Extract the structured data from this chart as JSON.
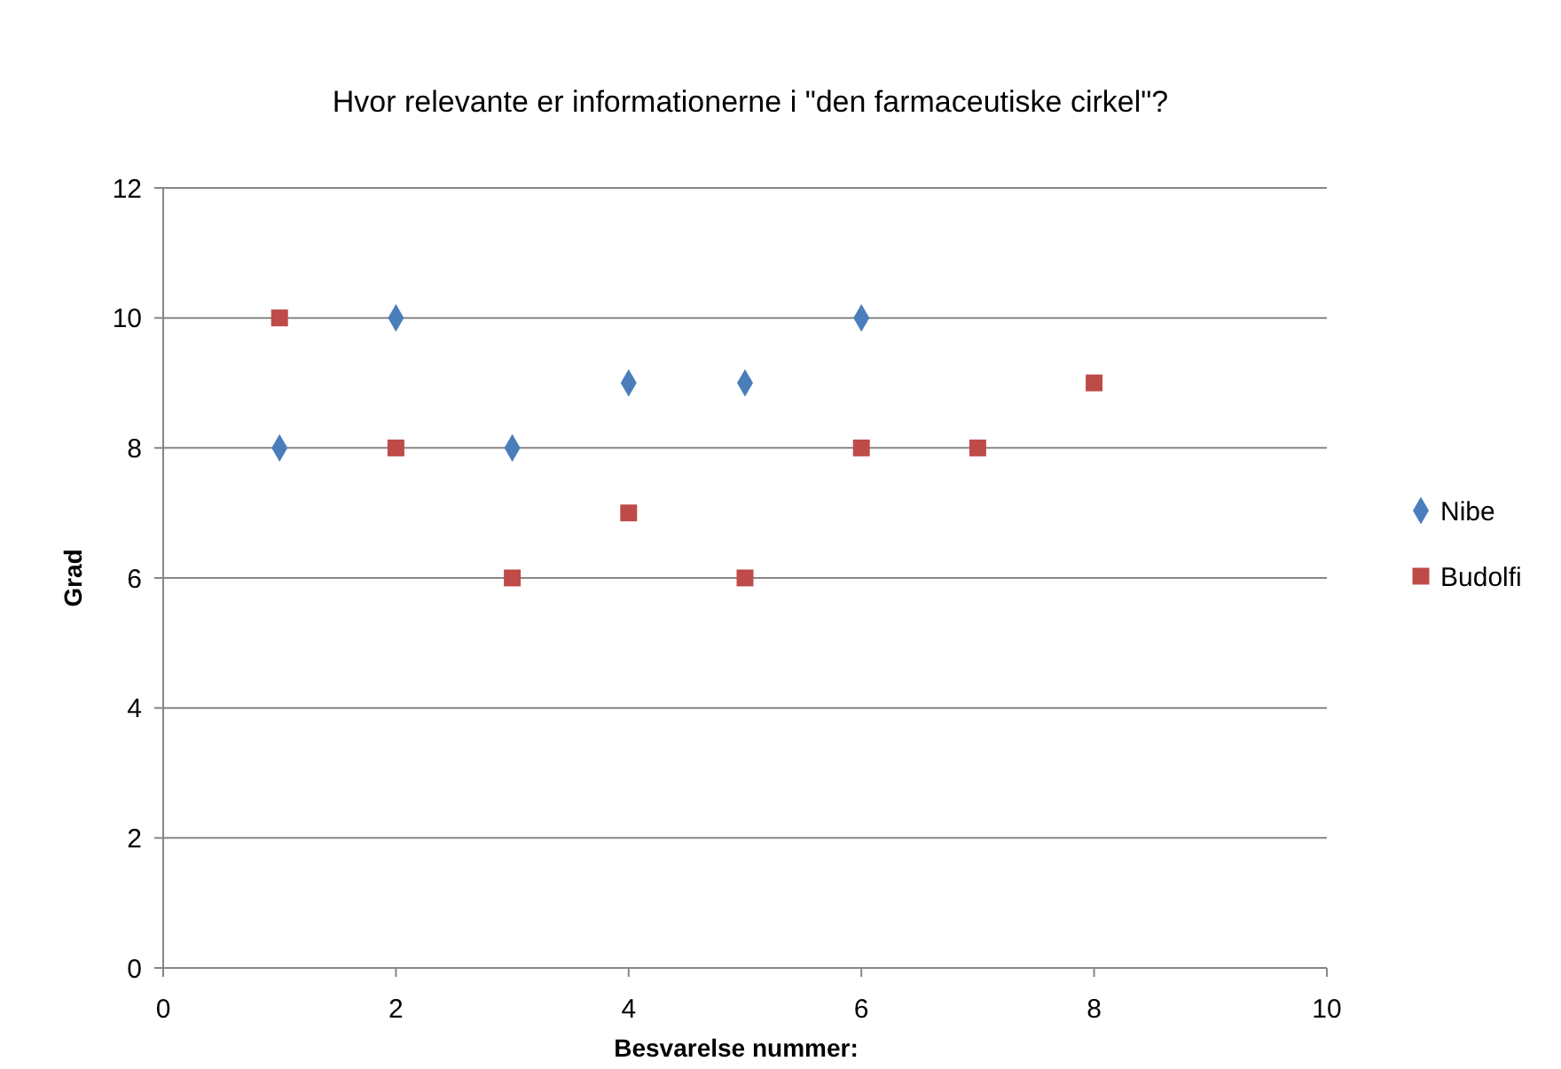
{
  "chart_data": {
    "type": "scatter",
    "title": "Hvor relevante er informationerne i \"den farmaceutiske cirkel\"?",
    "xlabel": "Besvarelse nummer:",
    "ylabel": "Grad",
    "xlim": [
      0,
      10
    ],
    "xticks": [
      0,
      2,
      4,
      6,
      8,
      10
    ],
    "ylim": [
      0,
      12
    ],
    "yticks": [
      0,
      2,
      4,
      6,
      8,
      10,
      12
    ],
    "grid": "y",
    "legend": "right",
    "series": [
      {
        "name": "Nibe",
        "color": "#4a7ebb",
        "marker": "diamond",
        "x": [
          1,
          2,
          3,
          4,
          5,
          6
        ],
        "values": [
          8,
          10,
          8,
          9,
          9,
          10
        ]
      },
      {
        "name": "Budolfi",
        "color": "#be4b48",
        "marker": "square",
        "x": [
          1,
          2,
          3,
          4,
          5,
          6,
          7,
          8
        ],
        "values": [
          10,
          8,
          6,
          7,
          6,
          8,
          8,
          9
        ]
      }
    ]
  }
}
